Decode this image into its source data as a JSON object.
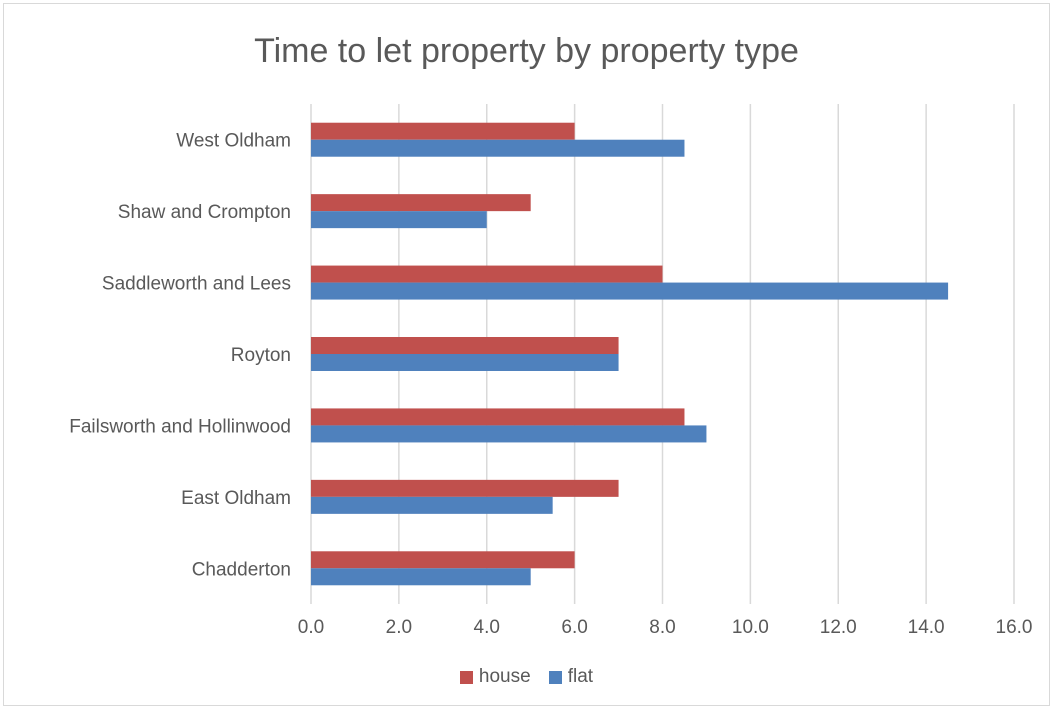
{
  "chart_data": {
    "type": "bar",
    "orientation": "horizontal",
    "title": "Time to let property by property type",
    "xlabel": "",
    "ylabel": "",
    "categories": [
      "Chadderton",
      "East Oldham",
      "Failsworth and Hollinwood",
      "Royton",
      "Saddleworth and Lees",
      "Shaw and Crompton",
      "West Oldham"
    ],
    "series": [
      {
        "name": "flat",
        "color": "#4f81bd",
        "values": [
          5.0,
          5.5,
          9.0,
          7.0,
          14.5,
          4.0,
          8.5
        ]
      },
      {
        "name": "house",
        "color": "#c0504d",
        "values": [
          6.0,
          7.0,
          8.5,
          7.0,
          8.0,
          5.0,
          6.0
        ]
      }
    ],
    "xlim": [
      0,
      16
    ],
    "xticks": [
      "0.0",
      "2.0",
      "4.0",
      "6.0",
      "8.0",
      "10.0",
      "12.0",
      "14.0",
      "16.0"
    ],
    "grid": true,
    "gridline_color": "#d9d9d9",
    "legend": {
      "position": "bottom",
      "entries": [
        {
          "label": "house",
          "color": "#c0504d"
        },
        {
          "label": "flat",
          "color": "#4f81bd"
        }
      ]
    }
  }
}
